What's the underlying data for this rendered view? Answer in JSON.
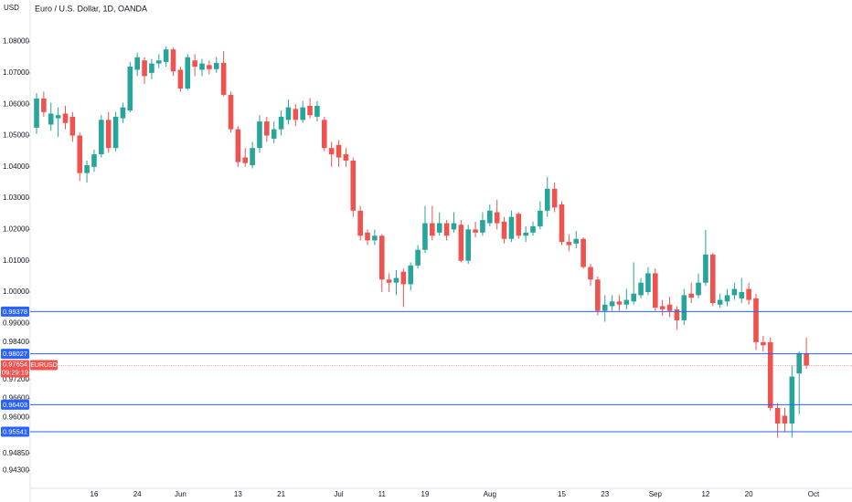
{
  "chart_data": {
    "type": "candlestick",
    "title": "Euro / U.S. Dollar, 1D, OANDA",
    "unit_label": "USD",
    "symbol": "EURUSD",
    "countdown": "09:29:19",
    "last_price": 0.97654,
    "up_color": "#26a69a",
    "down_color": "#ef5350",
    "level_color": "#2962ff",
    "levels": [
      0.99378,
      0.98027,
      0.96403,
      0.95541
    ],
    "ylim": [
      0.93732,
      1.09329
    ],
    "yticks": [
      {
        "value": 1.08,
        "label": "1.08000"
      },
      {
        "value": 1.07,
        "label": "1.07000"
      },
      {
        "value": 1.06,
        "label": "1.06000"
      },
      {
        "value": 1.05,
        "label": "1.05000"
      },
      {
        "value": 1.04,
        "label": "1.04000"
      },
      {
        "value": 1.03,
        "label": "1.03000"
      },
      {
        "value": 1.02,
        "label": "1.02000"
      },
      {
        "value": 1.01,
        "label": "1.01000"
      },
      {
        "value": 1.0,
        "label": "1.00000"
      },
      {
        "value": 0.99,
        "label": "0.99000"
      },
      {
        "value": 0.984,
        "label": "0.98400"
      },
      {
        "value": 0.972,
        "label": "0.97200"
      },
      {
        "value": 0.966,
        "label": "0.96600"
      },
      {
        "value": 0.96,
        "label": "0.96000"
      },
      {
        "value": 0.9485,
        "label": "0.94850"
      },
      {
        "value": 0.943,
        "label": "0.94300"
      }
    ],
    "categories": [
      null,
      null,
      null,
      null,
      null,
      null,
      null,
      null,
      "16",
      null,
      null,
      null,
      null,
      null,
      "24",
      null,
      null,
      null,
      null,
      null,
      "Jun",
      null,
      null,
      null,
      null,
      null,
      null,
      null,
      "13",
      null,
      null,
      null,
      null,
      null,
      "21",
      null,
      null,
      null,
      null,
      null,
      null,
      null,
      "Jul",
      null,
      null,
      null,
      null,
      null,
      "11",
      null,
      null,
      null,
      null,
      null,
      "19",
      null,
      null,
      null,
      null,
      null,
      null,
      null,
      null,
      "Aug",
      null,
      null,
      null,
      null,
      null,
      null,
      null,
      null,
      null,
      "15",
      null,
      null,
      null,
      null,
      null,
      "23",
      null,
      null,
      null,
      null,
      null,
      null,
      "Sep",
      null,
      null,
      null,
      null,
      null,
      null,
      "12",
      null,
      null,
      null,
      null,
      null,
      "20",
      null,
      null,
      null,
      null,
      null,
      null,
      null,
      null,
      "Oct"
    ],
    "open": [
      1.0525,
      1.0618,
      1.0535,
      1.0555,
      1.057,
      1.056,
      1.05,
      1.038,
      1.04,
      1.044,
      1.055,
      1.046,
      1.0555,
      1.058,
      1.071,
      1.074,
      1.07,
      1.073,
      1.0735,
      1.0775,
      1.071,
      1.065,
      1.074,
      1.071,
      1.0725,
      1.0712,
      1.0732,
      1.063,
      1.052,
      1.043,
      1.0405,
      1.046,
      1.0545,
      1.049,
      1.052,
      1.055,
      1.0585,
      1.055,
      1.0595,
      1.056,
      1.055,
      1.046,
      1.047,
      1.044,
      1.042,
      1.026,
      1.019,
      1.0165,
      1.018,
      1.004,
      1.003,
      1.0065,
      1.0025,
      1.0085,
      1.0135,
      1.022,
      1.019,
      1.022,
      1.02,
      1.0215,
      1.01,
      1.02,
      1.019,
      1.022,
      1.0255,
      1.0225,
      1.017,
      1.025,
      1.018,
      1.019,
      1.021,
      1.026,
      1.033,
      1.028,
      1.016,
      1.0155,
      1.017,
      1.008,
      1.004,
      0.994,
      0.9955,
      0.997,
      0.996,
      0.997,
      0.999,
      1.0,
      1.006,
      0.9955,
      0.996,
      0.9945,
      0.991,
      0.9995,
      0.999,
      1.003,
      1.012,
      0.996,
      0.997,
      0.999,
      0.998,
      1.001,
      0.998,
      0.984,
      0.984,
      0.963,
      0.9605,
      0.958,
      0.974,
      0.9805,
      null
    ],
    "high": [
      1.0635,
      1.064,
      1.0605,
      1.059,
      1.0595,
      1.0575,
      1.051,
      1.042,
      1.0455,
      1.0565,
      1.0575,
      1.0575,
      1.0605,
      1.0735,
      1.0765,
      1.075,
      1.0745,
      1.076,
      1.0785,
      1.078,
      1.072,
      1.076,
      1.076,
      1.0745,
      1.074,
      1.075,
      1.077,
      1.064,
      1.053,
      1.046,
      1.048,
      1.0565,
      1.056,
      1.0545,
      1.058,
      1.0615,
      1.06,
      1.061,
      1.062,
      1.061,
      1.056,
      1.048,
      1.0485,
      1.046,
      1.043,
      1.0275,
      1.02,
      1.02,
      1.0185,
      1.006,
      1.007,
      1.0075,
      1.0095,
      1.015,
      1.0275,
      1.0275,
      1.0255,
      1.023,
      1.0255,
      1.023,
      1.0215,
      1.0225,
      1.0255,
      1.028,
      1.0295,
      1.024,
      1.026,
      1.0255,
      1.021,
      1.0225,
      1.029,
      1.0368,
      1.035,
      1.029,
      1.0185,
      1.0195,
      1.0175,
      1.009,
      1.005,
      0.999,
      0.999,
      0.999,
      1.001,
      1.0095,
      1.0045,
      1.008,
      1.0075,
      0.9975,
      0.9985,
      0.9955,
      1.001,
      1.003,
      1.006,
      1.0198,
      1.0125,
      0.9995,
      1.001,
      1.003,
      1.0045,
      1.003,
      0.9995,
      0.986,
      0.9855,
      0.9645,
      0.963,
      0.9765,
      0.981,
      0.9855,
      null
    ],
    "low": [
      1.0505,
      1.056,
      1.0515,
      1.0495,
      1.052,
      1.048,
      1.0355,
      1.035,
      1.0385,
      1.043,
      1.0445,
      1.045,
      1.054,
      1.0575,
      1.069,
      1.0665,
      1.068,
      1.0715,
      1.072,
      1.069,
      1.064,
      1.0645,
      1.069,
      1.069,
      1.0695,
      1.07,
      1.0625,
      1.051,
      1.04,
      1.04,
      1.0395,
      1.0445,
      1.048,
      1.0475,
      1.05,
      1.0535,
      1.053,
      1.054,
      1.0555,
      1.0545,
      1.045,
      1.04,
      1.04,
      1.04,
      1.024,
      1.0165,
      1.015,
      1.015,
      1.0,
      1.0,
      0.999,
      0.9952,
      1.0005,
      1.0075,
      1.0125,
      1.0165,
      1.018,
      1.0165,
      1.019,
      1.0095,
      1.009,
      1.0175,
      1.018,
      1.021,
      1.02,
      1.0155,
      1.016,
      1.017,
      1.016,
      1.018,
      1.02,
      1.024,
      1.0255,
      1.015,
      1.013,
      1.014,
      1.0075,
      1.002,
      0.9925,
      0.9905,
      0.994,
      0.994,
      0.9945,
      0.996,
      0.998,
      0.999,
      0.994,
      0.9925,
      0.992,
      0.988,
      0.9895,
      0.9965,
      0.998,
      1.002,
      0.9955,
      0.995,
      0.9955,
      0.9975,
      0.9965,
      0.996,
      0.9815,
      0.981,
      0.962,
      0.9535,
      0.9555,
      0.9535,
      0.961,
      0.9755,
      null
    ],
    "close": [
      1.0618,
      1.0575,
      1.057,
      1.0565,
      1.054,
      1.05,
      1.038,
      1.0405,
      1.044,
      1.055,
      1.046,
      1.056,
      1.059,
      1.072,
      1.075,
      1.069,
      1.073,
      1.074,
      1.0775,
      1.0705,
      1.065,
      1.075,
      1.072,
      1.073,
      1.0712,
      1.0732,
      1.063,
      1.052,
      1.0415,
      1.0412,
      1.046,
      1.0545,
      1.05,
      1.052,
      1.056,
      1.059,
      1.055,
      1.059,
      1.0565,
      1.0595,
      1.046,
      1.044,
      1.043,
      1.042,
      1.026,
      1.018,
      1.0165,
      1.018,
      1.004,
      1.003,
      1.0045,
      1.0025,
      1.0085,
      1.0135,
      1.022,
      1.018,
      1.022,
      1.018,
      1.022,
      1.01,
      1.02,
      1.019,
      1.023,
      1.026,
      1.022,
      1.017,
      1.024,
      1.018,
      1.019,
      1.021,
      1.026,
      1.033,
      1.027,
      1.016,
      1.015,
      1.017,
      1.008,
      1.004,
      0.994,
      0.996,
      0.997,
      0.996,
      0.9975,
      0.9995,
      1.003,
      1.006,
      0.995,
      0.9945,
      0.994,
      0.991,
      0.999,
      0.9982,
      1.003,
      1.012,
      0.9965,
      0.9975,
      0.999,
      1.001,
      1.0,
      0.9975,
      0.984,
      0.983,
      0.963,
      0.958,
      0.958,
      0.973,
      0.9805,
      0.97654,
      null
    ]
  }
}
